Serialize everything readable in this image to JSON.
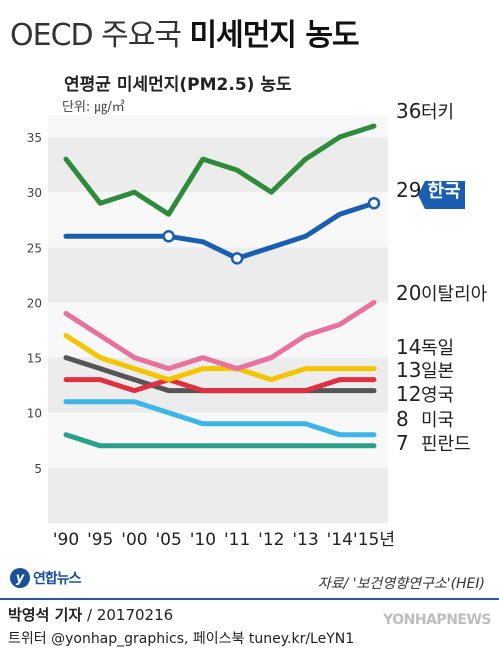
{
  "header": {
    "title_light": "OECD 주요국",
    "title_bold": "미세먼지 농도",
    "subtitle": "연평균 미세먼지(PM2.5) 농도",
    "unit": "단위: ㎍/㎥"
  },
  "footer": {
    "logo_text": "연합뉴스",
    "source": "자료/ '보건영향연구소'(HEI)",
    "author": "박영석 기자",
    "date": "20170216",
    "social": "트위터 @yonhap_graphics, 페이스북 tuney.kr/LeYN1",
    "watermark": "YONHAPNEWS"
  },
  "chart_data": {
    "type": "line",
    "x": [
      "'90",
      "'95",
      "'00",
      "'05",
      "'10",
      "'11",
      "'12",
      "'13",
      "'14",
      "'15년"
    ],
    "ylim": [
      0,
      37
    ],
    "yticks": [
      5,
      10,
      15,
      20,
      25,
      30,
      35
    ],
    "grid": "alternating horizontal bands",
    "series": [
      {
        "name": "터키",
        "end_label": "36",
        "color": "#2e8b3a",
        "values": [
          33,
          29,
          30,
          28,
          33,
          32,
          30,
          33,
          35,
          36
        ]
      },
      {
        "name": "한국",
        "end_label": "29",
        "color": "#1a5eb0",
        "highlight": true,
        "values": [
          26,
          26,
          26,
          26,
          25.5,
          24,
          25,
          26,
          28,
          29
        ],
        "markers": [
          3,
          5,
          9
        ]
      },
      {
        "name": "이탈리아",
        "end_label": "20",
        "color": "#e8719e",
        "values": [
          19,
          17,
          15,
          14,
          15,
          14,
          15,
          17,
          18,
          20
        ]
      },
      {
        "name": "독일",
        "end_label": "14",
        "color": "#f5c400",
        "values": [
          17,
          15,
          14,
          13,
          14,
          14,
          13,
          14,
          14,
          14
        ]
      },
      {
        "name": "일본",
        "end_label": "13",
        "color": "#e03040",
        "values": [
          13,
          13,
          12,
          13,
          12,
          12,
          12,
          12,
          13,
          13
        ]
      },
      {
        "name": "영국",
        "end_label": "12",
        "color": "#555555",
        "values": [
          15,
          14,
          13,
          12,
          12,
          12,
          12,
          12,
          12,
          12
        ]
      },
      {
        "name": "미국",
        "end_label": "8",
        "color": "#3cb6e8",
        "values": [
          11,
          11,
          11,
          10,
          9,
          9,
          9,
          9,
          8,
          8
        ]
      },
      {
        "name": "핀란드",
        "end_label": "7",
        "color": "#2aa08a",
        "values": [
          8,
          7,
          7,
          7,
          7,
          7,
          7,
          7,
          7,
          7
        ]
      }
    ]
  }
}
